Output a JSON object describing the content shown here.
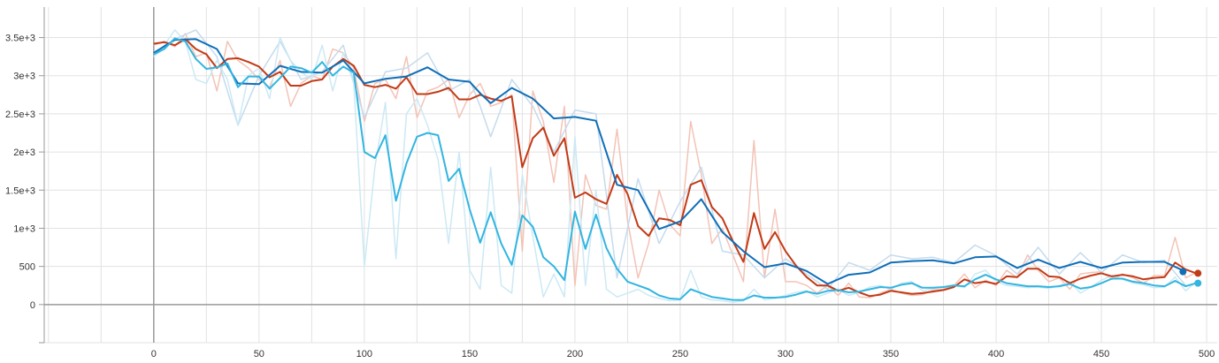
{
  "chart_data": {
    "type": "line",
    "title": "",
    "xlabel": "",
    "ylabel": "",
    "xlim": [
      -52,
      505
    ],
    "ylim": [
      -500,
      3900
    ],
    "grid": true,
    "x_ticks": [
      "0",
      "50",
      "100",
      "150",
      "200",
      "250",
      "300",
      "350",
      "400",
      "450",
      "500"
    ],
    "y_ticks": [
      "3.5e+3",
      "3e+3",
      "2.5e+3",
      "2e+3",
      "1.5e+3",
      "1e+3",
      "500",
      "0"
    ],
    "series": [
      {
        "color": "#c23b17",
        "raw_color": "#f3c3b6",
        "x": [
          0,
          5,
          10,
          15,
          20,
          25,
          30,
          35,
          40,
          45,
          50,
          55,
          60,
          65,
          70,
          75,
          80,
          85,
          90,
          95,
          100,
          105,
          110,
          115,
          120,
          125,
          130,
          135,
          140,
          145,
          150,
          155,
          160,
          165,
          170,
          175,
          180,
          185,
          190,
          195,
          200,
          205,
          210,
          215,
          220,
          225,
          230,
          235,
          240,
          245,
          250,
          255,
          260,
          265,
          270,
          275,
          280,
          285,
          290,
          295,
          300,
          305,
          310,
          315,
          320,
          325,
          330,
          335,
          340,
          345,
          350,
          355,
          360,
          365,
          370,
          375,
          380,
          385,
          390,
          395,
          400,
          405,
          410,
          415,
          420,
          425,
          430,
          435,
          440,
          445,
          450,
          455,
          460,
          465,
          470,
          475,
          480,
          485,
          490,
          495
        ],
        "y": [
          3420,
          3440,
          3400,
          3480,
          3350,
          3280,
          3100,
          3220,
          3230,
          3180,
          3120,
          2980,
          3050,
          2870,
          2870,
          2930,
          2950,
          3120,
          3220,
          3130,
          2880,
          2850,
          2880,
          2830,
          2980,
          2760,
          2760,
          2790,
          2840,
          2690,
          2690,
          2750,
          2700,
          2670,
          2730,
          1800,
          2180,
          2320,
          1950,
          2180,
          1400,
          1470,
          1380,
          1320,
          1700,
          1450,
          1030,
          900,
          1130,
          1110,
          1040,
          1570,
          1630,
          1280,
          1130,
          830,
          560,
          1200,
          730,
          950,
          700,
          510,
          360,
          250,
          250,
          180,
          220,
          160,
          110,
          130,
          180,
          160,
          140,
          150,
          170,
          190,
          230,
          330,
          280,
          300,
          270,
          370,
          360,
          470,
          470,
          370,
          360,
          280,
          340,
          380,
          410,
          370,
          390,
          370,
          330,
          350,
          360,
          550,
          460,
          410
        ],
        "y_raw": [
          3400,
          3450,
          3380,
          3550,
          3250,
          3300,
          2800,
          3450,
          3200,
          3100,
          2950,
          2850,
          3200,
          2600,
          2900,
          3000,
          2950,
          3350,
          3300,
          3100,
          2400,
          2900,
          2950,
          2700,
          3250,
          2450,
          2800,
          2850,
          2950,
          2450,
          2750,
          2900,
          2600,
          2650,
          2750,
          700,
          2800,
          2400,
          1600,
          2600,
          250,
          1700,
          1300,
          1250,
          2300,
          1100,
          350,
          800,
          1500,
          1050,
          900,
          2400,
          1700,
          800,
          1000,
          650,
          300,
          2150,
          350,
          1250,
          300,
          300,
          250,
          150,
          250,
          120,
          280,
          100,
          90,
          150,
          200,
          150,
          120,
          130,
          190,
          200,
          250,
          400,
          220,
          320,
          250,
          450,
          350,
          650,
          450,
          300,
          350,
          200,
          400,
          420,
          430,
          330,
          400,
          350,
          280,
          380,
          380,
          880,
          350,
          420
        ]
      },
      {
        "color": "#0f6eb8",
        "raw_color": "#c4dbee",
        "x": [
          0,
          10,
          20,
          30,
          40,
          50,
          60,
          70,
          80,
          90,
          100,
          110,
          120,
          130,
          140,
          150,
          155,
          160,
          170,
          180,
          190,
          200,
          210,
          220,
          230,
          240,
          250,
          260,
          270,
          280,
          290,
          300,
          310,
          320,
          330,
          340,
          350,
          360,
          370,
          380,
          390,
          400,
          410,
          420,
          430,
          440,
          450,
          460,
          470,
          480,
          490
        ],
        "y": [
          3300,
          3470,
          3480,
          3350,
          2900,
          2890,
          3130,
          3050,
          3040,
          3200,
          2900,
          2960,
          2990,
          3110,
          2950,
          2920,
          2770,
          2640,
          2840,
          2700,
          2440,
          2460,
          2410,
          1570,
          1500,
          990,
          1090,
          1380,
          950,
          700,
          490,
          540,
          440,
          270,
          390,
          420,
          550,
          570,
          580,
          540,
          620,
          630,
          480,
          590,
          480,
          560,
          480,
          550,
          560,
          560,
          430
        ],
        "y_raw": [
          3250,
          3480,
          3600,
          3250,
          2350,
          3000,
          3450,
          2950,
          3050,
          3400,
          2450,
          3050,
          3100,
          3300,
          2800,
          2950,
          2600,
          2200,
          2950,
          2600,
          2000,
          2550,
          2500,
          350,
          1650,
          800,
          1350,
          1800,
          700,
          650,
          350,
          600,
          400,
          200,
          550,
          450,
          650,
          600,
          620,
          550,
          780,
          640,
          400,
          750,
          400,
          680,
          420,
          650,
          550,
          580,
          250
        ]
      },
      {
        "color": "#32b5e0",
        "raw_color": "#cce9f5",
        "x": [
          0,
          5,
          10,
          15,
          20,
          25,
          30,
          35,
          40,
          45,
          50,
          55,
          60,
          65,
          70,
          75,
          80,
          85,
          90,
          95,
          100,
          105,
          110,
          115,
          120,
          125,
          130,
          135,
          140,
          145,
          150,
          155,
          160,
          165,
          170,
          175,
          180,
          185,
          190,
          195,
          200,
          205,
          210,
          215,
          220,
          225,
          230,
          235,
          240,
          245,
          250,
          255,
          260,
          265,
          270,
          275,
          280,
          285,
          290,
          295,
          300,
          305,
          310,
          315,
          320,
          325,
          330,
          335,
          340,
          345,
          350,
          355,
          360,
          365,
          370,
          375,
          380,
          385,
          390,
          395,
          400,
          405,
          410,
          415,
          420,
          425,
          430,
          435,
          440,
          445,
          450,
          455,
          460,
          465,
          470,
          475,
          480,
          485,
          490,
          495
        ],
        "y": [
          3280,
          3350,
          3490,
          3450,
          3220,
          3090,
          3110,
          3160,
          2850,
          2990,
          2990,
          2830,
          2970,
          3120,
          3100,
          3040,
          3180,
          3000,
          3120,
          3040,
          2000,
          1920,
          2220,
          1360,
          1850,
          2200,
          2250,
          2220,
          1620,
          1780,
          1250,
          810,
          1210,
          800,
          520,
          1170,
          1020,
          620,
          500,
          320,
          1220,
          730,
          1180,
          740,
          470,
          300,
          250,
          200,
          120,
          80,
          70,
          200,
          150,
          100,
          80,
          60,
          60,
          120,
          90,
          90,
          100,
          130,
          170,
          140,
          180,
          190,
          160,
          170,
          200,
          230,
          220,
          260,
          280,
          220,
          220,
          230,
          250,
          240,
          330,
          390,
          330,
          280,
          260,
          240,
          240,
          230,
          240,
          270,
          210,
          230,
          280,
          340,
          340,
          300,
          280,
          250,
          240,
          310,
          240,
          280
        ],
        "y_raw": [
          3250,
          3400,
          3600,
          3450,
          2950,
          2900,
          3200,
          2950,
          2350,
          3000,
          3100,
          2700,
          3500,
          3200,
          3050,
          2950,
          3400,
          2800,
          3300,
          2900,
          500,
          1800,
          2650,
          600,
          2500,
          2700,
          2350,
          1900,
          800,
          2000,
          450,
          200,
          1800,
          250,
          150,
          1700,
          900,
          100,
          400,
          100,
          2200,
          250,
          1500,
          200,
          100,
          150,
          200,
          120,
          80,
          50,
          60,
          450,
          100,
          60,
          50,
          30,
          50,
          200,
          60,
          80,
          120,
          160,
          180,
          100,
          150,
          200,
          120,
          160,
          230,
          250,
          200,
          280,
          300,
          180,
          210,
          230,
          260,
          220,
          400,
          450,
          300,
          250,
          240,
          220,
          230,
          210,
          250,
          300,
          150,
          230,
          320,
          380,
          330,
          280,
          260,
          220,
          230,
          360,
          180,
          300
        ]
      }
    ]
  }
}
